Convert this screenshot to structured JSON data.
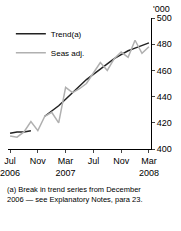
{
  "chart_data": {
    "type": "line",
    "ylabel": "'000",
    "footnote": "(a) Break in trend series from December 2006 — see Explanatory Notes, para 23.",
    "categories": [
      "Jul\n2006",
      null,
      null,
      null,
      "Nov",
      null,
      null,
      null,
      "Mar\n2007",
      null,
      null,
      null,
      "Jul",
      null,
      null,
      null,
      "Nov",
      null,
      null,
      null,
      "Mar\n2008"
    ],
    "series": [
      {
        "name": "Trend(a)",
        "color": "#222222",
        "line_style": "solid",
        "values": [
          412,
          413,
          413,
          414,
          null,
          425,
          429,
          433,
          438,
          443,
          448,
          453,
          457,
          461,
          465,
          469,
          472,
          475,
          477,
          479,
          481
        ]
      },
      {
        "name": "Seas adj.",
        "color": "#b0b0b0",
        "line_style": "solid",
        "values": [
          410,
          409,
          413,
          421,
          414,
          425,
          428,
          420,
          447,
          443,
          446,
          450,
          458,
          466,
          460,
          469,
          474,
          470,
          483,
          473,
          478
        ]
      }
    ],
    "ylim": [
      400,
      500
    ],
    "yticks": [
      400,
      420,
      440,
      460,
      480,
      500
    ],
    "grid": false,
    "legend": "top-left"
  }
}
